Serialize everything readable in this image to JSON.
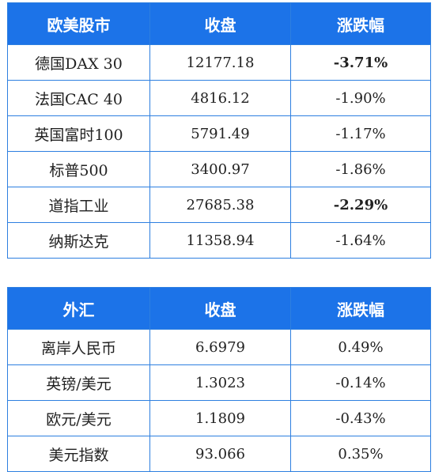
{
  "stocks": {
    "headers": [
      "欧美股市",
      "收盘",
      "涨跌幅"
    ],
    "rows": [
      {
        "name": "德国DAX 30",
        "close": "12177.18",
        "change": "-3.71%"
      },
      {
        "name": "法国CAC 40",
        "close": "4816.12",
        "change": "-1.90%"
      },
      {
        "name": "英国富时100",
        "close": "5791.49",
        "change": "-1.17%"
      },
      {
        "name": "标普500",
        "close": "3400.97",
        "change": "-1.86%"
      },
      {
        "name": "道指工业",
        "close": "27685.38",
        "change": "-2.29%"
      },
      {
        "name": "纳斯达克",
        "close": "11358.94",
        "change": "-1.64%"
      }
    ]
  },
  "fx": {
    "headers": [
      "外汇",
      "收盘",
      "涨跌幅"
    ],
    "rows": [
      {
        "name": "离岸人民币",
        "close": "6.6979",
        "change": "0.49%"
      },
      {
        "name": "英镑/美元",
        "close": "1.3023",
        "change": "-0.14%"
      },
      {
        "name": "欧元/美元",
        "close": "1.1809",
        "change": "-0.43%"
      },
      {
        "name": "美元指数",
        "close": "93.066",
        "change": "0.35%"
      }
    ]
  },
  "colors": {
    "header_bg": "#1c73e8",
    "border": "#2d7fe0",
    "negative": "#1a9a3a",
    "positive": "#e23b2b"
  }
}
